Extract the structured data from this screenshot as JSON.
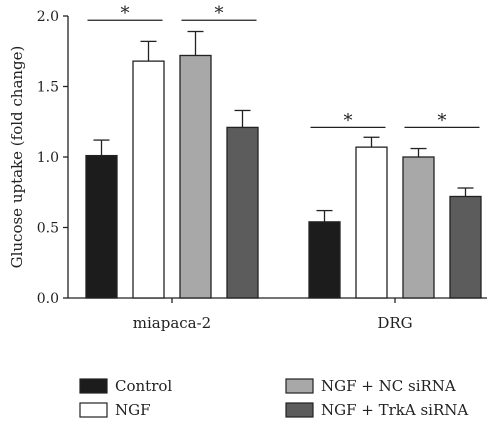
{
  "chart_data": {
    "type": "bar",
    "title": "",
    "xlabel": "",
    "ylabel": "Glucose uptake (fold change)",
    "ylim": [
      0,
      2.0
    ],
    "yticks": [
      "0.0",
      "0.5",
      "1.0",
      "1.5",
      "2.0"
    ],
    "categories": [
      "miapaca-2",
      "DRG"
    ],
    "series": [
      {
        "name": "Control",
        "color": "#1c1c1c",
        "values": [
          1.01,
          0.54
        ],
        "errors": [
          0.11,
          0.08
        ]
      },
      {
        "name": "NGF",
        "color": "#ffffff",
        "values": [
          1.68,
          1.07
        ],
        "errors": [
          0.14,
          0.07
        ]
      },
      {
        "name": "NGF + NC siRNA",
        "color": "#a8a8a8",
        "values": [
          1.72,
          1.0
        ],
        "errors": [
          0.17,
          0.06
        ]
      },
      {
        "name": "NGF + TrkA siRNA",
        "color": "#5c5c5c",
        "values": [
          1.21,
          0.72
        ],
        "errors": [
          0.12,
          0.06
        ]
      }
    ],
    "significance": [
      {
        "category": 0,
        "from_series": 0,
        "to_series": 1,
        "y": 1.97,
        "label": "*"
      },
      {
        "category": 0,
        "from_series": 2,
        "to_series": 3,
        "y": 1.97,
        "label": "*"
      },
      {
        "category": 1,
        "from_series": 0,
        "to_series": 1,
        "y": 1.21,
        "label": "*"
      },
      {
        "category": 1,
        "from_series": 2,
        "to_series": 3,
        "y": 1.21,
        "label": "*"
      }
    ],
    "grid": false,
    "legend_position": "bottom"
  }
}
